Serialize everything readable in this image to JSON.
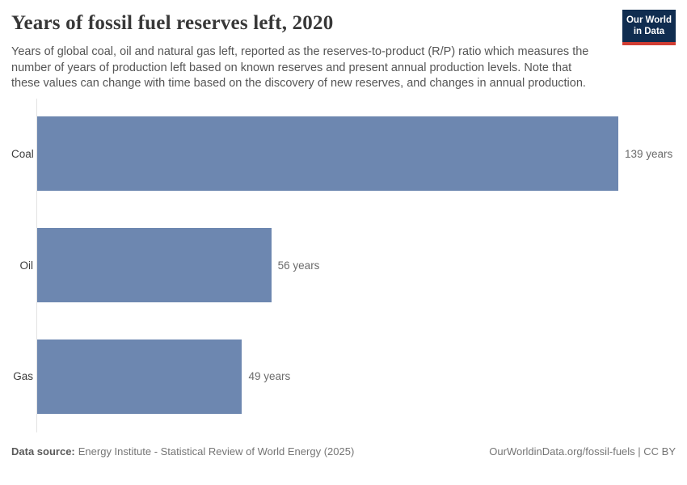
{
  "header": {
    "title": "Years of fossil fuel reserves left, 2020",
    "subtitle": "Years of global coal, oil and natural gas left, reported as the reserves-to-product (R/P) ratio which measures the number of years of production left based on known reserves and present annual production levels. Note that these values can change with time based on the discovery of new reserves, and changes in annual production.",
    "logo": {
      "line1": "Our World",
      "line2": "in Data"
    }
  },
  "chart_data": {
    "type": "bar",
    "orientation": "horizontal",
    "title": "Years of fossil fuel reserves left, 2020",
    "categories": [
      "Coal",
      "Oil",
      "Gas"
    ],
    "values": [
      139,
      56,
      49
    ],
    "value_labels": [
      "139 years",
      "56 years",
      "49 years"
    ],
    "unit": "years",
    "xlim": [
      0,
      139
    ],
    "grid": false,
    "legend": "none",
    "bar_color": "#6d87b0"
  },
  "footer": {
    "source_label": "Data source:",
    "source_text": "Energy Institute - Statistical Review of World Energy (2025)",
    "attribution": "OurWorldinData.org/fossil-fuels | CC BY"
  },
  "colors": {
    "bar": "#6d87b0",
    "logo_background": "#102d50",
    "logo_stripe": "#d13d33",
    "axis_line": "#e3e3e3",
    "title_text": "#383838",
    "subtitle_text": "#555555",
    "value_text": "#6b6b6b",
    "footer_text": "#757575"
  }
}
